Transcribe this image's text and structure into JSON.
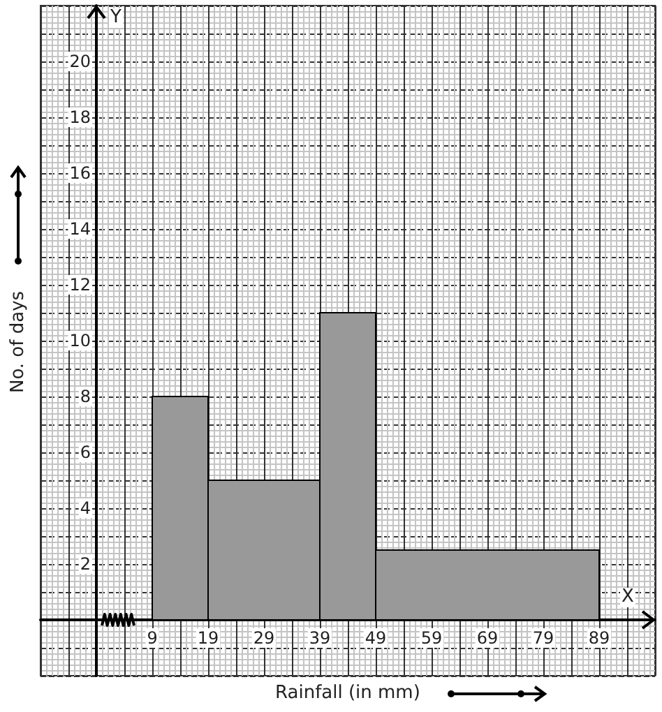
{
  "chart_data": {
    "type": "histogram",
    "xlabel": "Rainfall (in mm)",
    "ylabel": "No. of days",
    "annotations": [
      "Y",
      "X"
    ],
    "bins": [
      9,
      19,
      39,
      49,
      89
    ],
    "values": [
      8,
      5,
      11,
      2.5
    ],
    "color": "#999999",
    "xlim": [
      -11,
      99
    ],
    "ylim": [
      -2,
      22
    ],
    "xticks": [
      9,
      19,
      29,
      39,
      49,
      59,
      69,
      79,
      89
    ],
    "yticks": [
      2,
      4,
      6,
      8,
      10,
      12,
      14,
      16,
      18,
      20
    ],
    "grid": true
  }
}
